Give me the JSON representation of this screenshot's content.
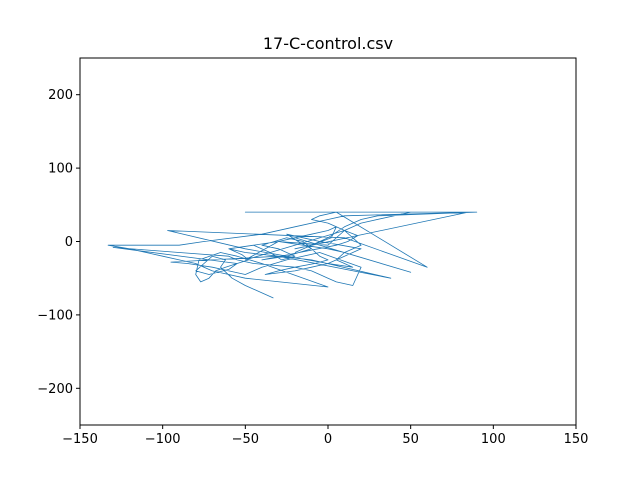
{
  "chart_data": {
    "type": "line",
    "title": "17-C-control.csv",
    "xlabel": "",
    "ylabel": "",
    "xlim": [
      -150,
      150
    ],
    "ylim": [
      -250,
      250
    ],
    "xticks": [
      -150,
      -100,
      -50,
      0,
      50,
      100,
      150
    ],
    "yticks": [
      -200,
      -100,
      0,
      100,
      200
    ],
    "xtick_labels": [
      "−150",
      "−100",
      "−50",
      "0",
      "50",
      "100",
      "150"
    ],
    "ytick_labels": [
      "−200",
      "−100",
      "0",
      "100",
      "200"
    ],
    "grid": false,
    "line_color": "#1f77b4",
    "series": [
      {
        "x": [
          -33,
          -50,
          -58,
          -65,
          -62,
          -70,
          -75,
          -80,
          -72,
          -60,
          -55,
          -48,
          -52,
          -60,
          -45,
          -35,
          -28,
          -20,
          -30,
          -40,
          -25,
          -15,
          -10,
          -5,
          0,
          -8,
          -20,
          -30,
          -38,
          -20,
          -10,
          0,
          5,
          10,
          15,
          20,
          8,
          -5,
          -15,
          -25,
          -18,
          -10,
          -25,
          -40,
          5,
          12,
          18,
          10,
          5,
          0,
          -10,
          -5,
          5,
          60,
          10,
          -97,
          -50,
          0,
          15,
          5,
          10,
          20,
          15,
          10,
          0,
          -30,
          -50,
          10,
          20,
          50,
          90,
          30,
          20,
          10,
          0,
          -10,
          -20,
          85,
          -50,
          90,
          10,
          0,
          -20,
          -40,
          -75,
          -90,
          -133,
          -120,
          -110,
          -100,
          -90,
          -80,
          -75,
          -70,
          -60,
          -50,
          0,
          -40,
          -55,
          -65,
          -78,
          -80,
          -77,
          -72,
          -68,
          -62,
          -55,
          -130,
          -90,
          -60,
          -55,
          -45,
          -20,
          -10,
          -5,
          0,
          5,
          15,
          20,
          -5,
          -25,
          -40,
          -45,
          -50,
          -60,
          -70,
          -85,
          -95,
          -30,
          38,
          -10,
          -30,
          -50,
          -60,
          -45,
          -30,
          -20,
          50,
          10,
          0,
          -15,
          -30,
          -20,
          -10,
          0,
          5,
          2,
          -10,
          -20
        ],
        "y": [
          -77,
          -60,
          -50,
          -35,
          -25,
          -20,
          -30,
          -40,
          -45,
          -38,
          -30,
          -25,
          -18,
          -10,
          -5,
          -15,
          -25,
          -20,
          -10,
          -5,
          5,
          0,
          -10,
          -20,
          -25,
          -30,
          -35,
          -40,
          -45,
          -40,
          -35,
          -30,
          -25,
          -20,
          -15,
          -10,
          -5,
          0,
          5,
          10,
          0,
          -10,
          -20,
          -25,
          -5,
          0,
          8,
          15,
          20,
          25,
          30,
          35,
          40,
          -35,
          5,
          15,
          -10,
          -30,
          -35,
          -25,
          -15,
          -5,
          5,
          15,
          -5,
          0,
          -25,
          15,
          25,
          40,
          40,
          35,
          30,
          20,
          5,
          -5,
          -10,
          40,
          40,
          40,
          35,
          30,
          20,
          10,
          0,
          -5,
          -5,
          -10,
          -15,
          -20,
          -25,
          -30,
          -35,
          -40,
          -45,
          -50,
          -62,
          -30,
          -20,
          -15,
          -25,
          -45,
          -55,
          -50,
          -40,
          -35,
          -30,
          -8,
          -15,
          -20,
          -25,
          -30,
          -35,
          -40,
          -45,
          -50,
          -55,
          -60,
          -35,
          -15,
          -25,
          -35,
          -40,
          -45,
          -40,
          -35,
          -30,
          -28,
          -20,
          -50,
          -25,
          -20,
          -15,
          -10,
          -5,
          0,
          5,
          -42,
          -15,
          -10,
          -5,
          0,
          5,
          10,
          15,
          20,
          5,
          -5,
          -15
        ]
      }
    ]
  }
}
